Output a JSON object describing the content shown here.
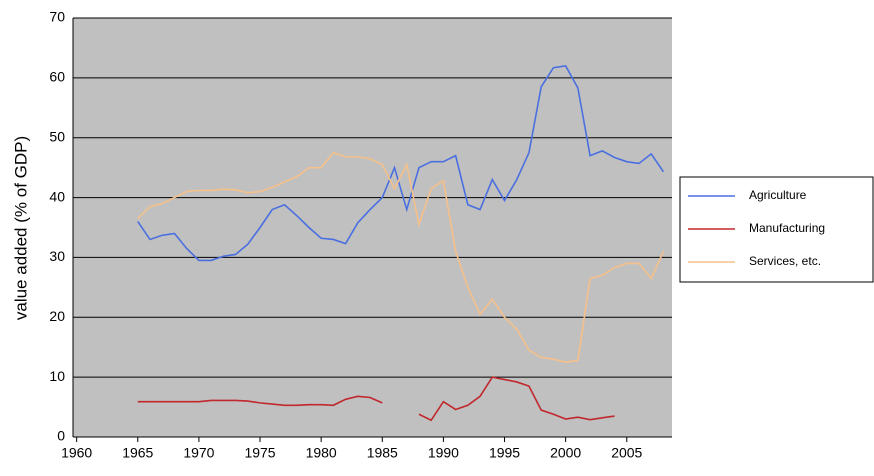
{
  "chart_data": {
    "type": "line",
    "y_label": "value added (% of GDP)",
    "x": [
      1965,
      1966,
      1967,
      1968,
      1969,
      1970,
      1971,
      1972,
      1973,
      1974,
      1975,
      1976,
      1977,
      1978,
      1979,
      1980,
      1981,
      1982,
      1983,
      1984,
      1985,
      1986,
      1987,
      1988,
      1989,
      1990,
      1991,
      1992,
      1993,
      1994,
      1995,
      1996,
      1997,
      1998,
      1999,
      2000,
      2001,
      2002,
      2003,
      2004,
      2005,
      2006,
      2007,
      2008
    ],
    "series": [
      {
        "name": "Agriculture",
        "color": "#4a6fe0",
        "values": [
          36,
          33,
          33.7,
          34,
          31.5,
          29.5,
          29.5,
          30.2,
          30.5,
          32.2,
          35,
          38,
          38.8,
          37,
          35,
          33.2,
          33,
          32.3,
          35.8,
          38,
          40,
          45,
          38,
          45,
          46,
          46,
          47,
          38.8,
          38,
          43,
          39.5,
          43,
          47.5,
          58.5,
          61.7,
          62,
          58.3,
          47,
          47.8,
          46.7,
          46,
          45.7,
          47.3,
          44.3
        ]
      },
      {
        "name": "Manufacturing",
        "color": "#c0282d",
        "values": [
          5.9,
          5.9,
          5.9,
          5.9,
          5.9,
          5.9,
          6.1,
          6.1,
          6.1,
          6,
          5.7,
          5.5,
          5.3,
          5.3,
          5.4,
          5.4,
          5.3,
          6.3,
          6.8,
          6.6,
          5.7,
          null,
          null,
          3.8,
          2.8,
          5.9,
          4.6,
          5.3,
          6.8,
          10,
          9.6,
          9.2,
          8.5,
          4.5,
          3.8,
          3,
          3.3,
          2.9,
          3.2,
          3.5,
          null,
          null,
          null,
          null
        ]
      },
      {
        "name": "Services, etc.",
        "color": "#f5c08a",
        "values": [
          36.5,
          38.5,
          39,
          40,
          41,
          41.2,
          41.2,
          41.4,
          41.3,
          40.8,
          41,
          41.7,
          42.6,
          43.5,
          45,
          45,
          47.5,
          46.8,
          46.8,
          46.5,
          45.5,
          41.5,
          45.5,
          35.5,
          41.5,
          42.8,
          31,
          25,
          20.5,
          23,
          20,
          18,
          14.5,
          13.3,
          13,
          12.5,
          12.8,
          26.5,
          27,
          28.3,
          29,
          29,
          26.5,
          31
        ]
      }
    ],
    "xlim": [
      1959.7,
      2008.7
    ],
    "xticks": [
      1960,
      1965,
      1970,
      1975,
      1980,
      1985,
      1990,
      1995,
      2000,
      2005
    ],
    "ylim": [
      0,
      70
    ],
    "yticks": [
      0,
      10,
      20,
      30,
      40,
      50,
      60,
      70
    ],
    "grid": true,
    "legend": "right"
  }
}
